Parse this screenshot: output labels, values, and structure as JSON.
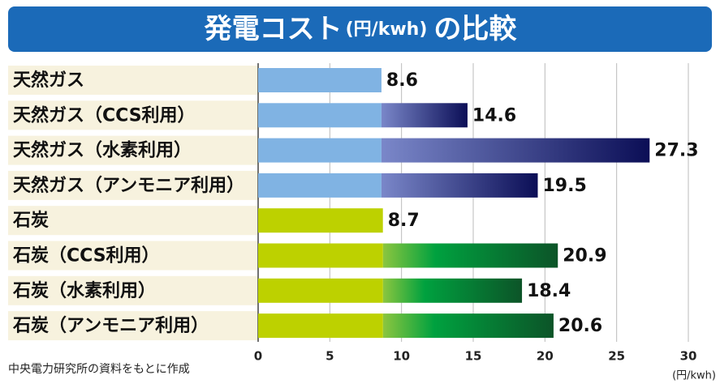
{
  "chart_data": {
    "type": "bar",
    "title": "発電コスト",
    "title_unit": "(円/kwh)",
    "title_suffix": "の比較",
    "categories": [
      "天然ガス",
      "天然ガス（CCS利用）",
      "天然ガス（水素利用）",
      "天然ガス（アンモニア利用）",
      "石炭",
      "石炭（CCS利用）",
      "石炭（水素利用）",
      "石炭（アンモニア利用）"
    ],
    "values": [
      8.6,
      14.6,
      27.3,
      19.5,
      8.7,
      20.9,
      18.4,
      20.6
    ],
    "colors": {
      "gas_base": "#80b3e3",
      "gas_from": "#7a87c9",
      "gas_to": "#0b0e56",
      "coal_base": "#bdd100",
      "coal_from": "#8cc63f",
      "coal_mid": "#00a13f",
      "coal_to": "#0c5428"
    },
    "xlim": [
      0,
      30
    ],
    "xticks": [
      0,
      5,
      10,
      15,
      20,
      25,
      30
    ],
    "grid": true,
    "x_unit": "(円/kwh)",
    "source": "中央電力研究所の資料をもとに作成"
  }
}
